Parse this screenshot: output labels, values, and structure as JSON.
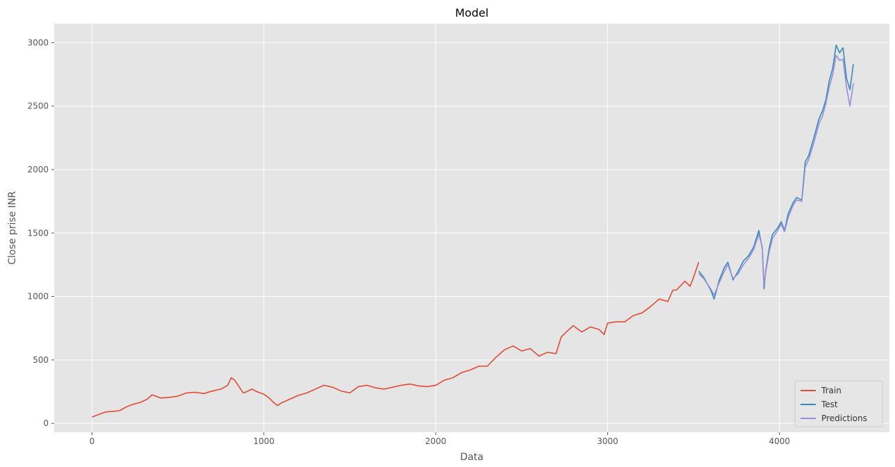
{
  "chart_data": {
    "type": "line",
    "title": "Model",
    "xlabel": "Data",
    "ylabel": "Close prise INR",
    "xlim": [
      -220,
      4640
    ],
    "ylim": [
      -70,
      3150
    ],
    "xticks": [
      0,
      1000,
      2000,
      3000,
      4000
    ],
    "yticks": [
      0,
      500,
      1000,
      1500,
      2000,
      2500,
      3000
    ],
    "grid": true,
    "legend_position": "bottom-right",
    "series": [
      {
        "name": "Train",
        "color": "#e24a33",
        "x": [
          0,
          40,
          80,
          120,
          160,
          200,
          240,
          280,
          320,
          350,
          400,
          450,
          500,
          550,
          600,
          650,
          700,
          750,
          790,
          810,
          830,
          860,
          880,
          900,
          930,
          960,
          1000,
          1030,
          1060,
          1080,
          1100,
          1150,
          1200,
          1250,
          1300,
          1350,
          1400,
          1450,
          1500,
          1550,
          1600,
          1650,
          1700,
          1750,
          1800,
          1850,
          1900,
          1950,
          2000,
          2050,
          2100,
          2150,
          2200,
          2250,
          2300,
          2350,
          2400,
          2450,
          2500,
          2550,
          2600,
          2650,
          2700,
          2730,
          2760,
          2800,
          2850,
          2900,
          2950,
          2980,
          3000,
          3050,
          3100,
          3150,
          3200,
          3250,
          3300,
          3350,
          3380,
          3400,
          3450,
          3480,
          3500,
          3530
        ],
        "values": [
          50,
          70,
          90,
          95,
          100,
          130,
          150,
          165,
          190,
          225,
          200,
          205,
          215,
          240,
          245,
          235,
          255,
          270,
          300,
          360,
          340,
          280,
          240,
          250,
          270,
          250,
          230,
          200,
          160,
          140,
          160,
          190,
          220,
          240,
          270,
          300,
          285,
          255,
          240,
          290,
          300,
          280,
          270,
          285,
          300,
          310,
          295,
          290,
          300,
          340,
          360,
          400,
          420,
          450,
          450,
          520,
          580,
          610,
          570,
          590,
          530,
          560,
          550,
          680,
          720,
          770,
          720,
          760,
          740,
          700,
          790,
          800,
          800,
          850,
          870,
          920,
          980,
          960,
          1050,
          1050,
          1120,
          1080,
          1150,
          1270
        ]
      },
      {
        "name": "Test",
        "color": "#348abd",
        "x": [
          3530,
          3560,
          3600,
          3620,
          3650,
          3680,
          3700,
          3730,
          3760,
          3790,
          3820,
          3850,
          3880,
          3900,
          3910,
          3920,
          3940,
          3960,
          3990,
          4010,
          4030,
          4050,
          4080,
          4100,
          4130,
          4150,
          4170,
          4200,
          4230,
          4250,
          4270,
          4290,
          4310,
          4330,
          4350,
          4370,
          4390,
          4410,
          4430
        ],
        "values": [
          1200,
          1150,
          1050,
          980,
          1130,
          1230,
          1270,
          1130,
          1200,
          1280,
          1320,
          1390,
          1520,
          1380,
          1060,
          1200,
          1380,
          1490,
          1540,
          1590,
          1520,
          1650,
          1740,
          1780,
          1760,
          2060,
          2110,
          2250,
          2400,
          2460,
          2550,
          2700,
          2800,
          2980,
          2920,
          2960,
          2720,
          2630,
          2830
        ]
      },
      {
        "name": "Predictions",
        "color": "#988ed5",
        "x": [
          3530,
          3560,
          3600,
          3620,
          3650,
          3680,
          3700,
          3730,
          3760,
          3790,
          3820,
          3850,
          3880,
          3900,
          3910,
          3920,
          3940,
          3960,
          3990,
          4010,
          4030,
          4050,
          4080,
          4100,
          4130,
          4150,
          4170,
          4200,
          4230,
          4250,
          4270,
          4290,
          4310,
          4330,
          4350,
          4370,
          4390,
          4410,
          4430
        ],
        "values": [
          1180,
          1140,
          1060,
          1010,
          1110,
          1200,
          1250,
          1140,
          1180,
          1250,
          1300,
          1370,
          1490,
          1390,
          1090,
          1190,
          1350,
          1460,
          1520,
          1570,
          1510,
          1620,
          1720,
          1760,
          1750,
          2020,
          2080,
          2210,
          2360,
          2420,
          2520,
          2650,
          2750,
          2900,
          2860,
          2870,
          2650,
          2500,
          2680
        ]
      }
    ]
  }
}
